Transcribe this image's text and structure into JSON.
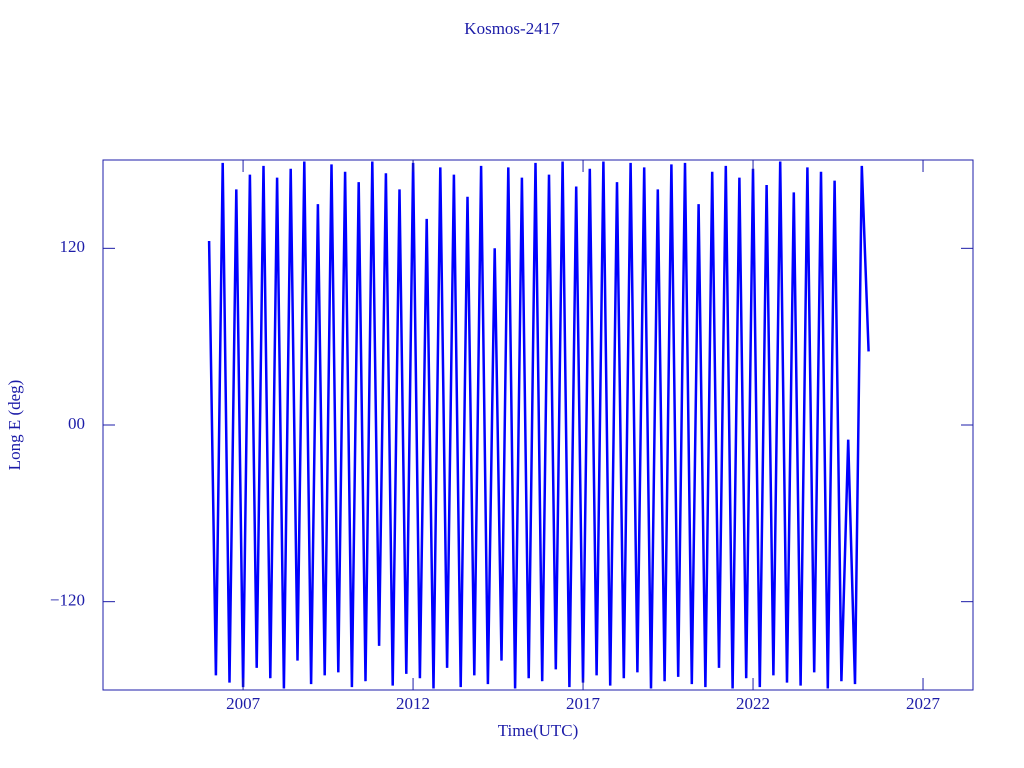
{
  "chart_data": {
    "type": "line",
    "title": "Kosmos-2417",
    "x_label": "Time(UTC)",
    "y_label": "Long E (deg)",
    "xlim": [
      2002.88,
      2028.47
    ],
    "xticks": [
      2007,
      2012,
      2017,
      2022,
      2027
    ],
    "ylim": [
      -180,
      180
    ],
    "yticks": [
      {
        "value": 120,
        "label": "120"
      },
      {
        "value": 0,
        "label": "00"
      },
      {
        "value": -120,
        "label": "−120"
      }
    ],
    "series": [
      {
        "name": "Kosmos-2417",
        "color": "#0000ff",
        "x": [
          2006.0,
          2006.2,
          2006.4,
          2006.6,
          2006.8,
          2007.0,
          2007.2,
          2007.4,
          2007.6,
          2007.8,
          2008.0,
          2008.2,
          2008.4,
          2008.6,
          2008.8,
          2009.0,
          2009.2,
          2009.4,
          2009.6,
          2009.8,
          2010.0,
          2010.2,
          2010.4,
          2010.6,
          2010.8,
          2011.0,
          2011.2,
          2011.4,
          2011.6,
          2011.8,
          2012.0,
          2012.2,
          2012.4,
          2012.6,
          2012.8,
          2013.0,
          2013.2,
          2013.4,
          2013.6,
          2013.8,
          2014.0,
          2014.2,
          2014.4,
          2014.6,
          2014.8,
          2015.0,
          2015.2,
          2015.4,
          2015.6,
          2015.8,
          2016.0,
          2016.2,
          2016.4,
          2016.6,
          2016.8,
          2017.0,
          2017.2,
          2017.4,
          2017.6,
          2017.8,
          2018.0,
          2018.2,
          2018.4,
          2018.6,
          2018.8,
          2019.0,
          2019.2,
          2019.4,
          2019.6,
          2019.8,
          2020.0,
          2020.2,
          2020.4,
          2020.6,
          2020.8,
          2021.0,
          2021.2,
          2021.4,
          2021.6,
          2021.8,
          2022.0,
          2022.2,
          2022.4,
          2022.6,
          2022.8,
          2023.0,
          2023.2,
          2023.4,
          2023.6,
          2023.8,
          2024.0,
          2024.2,
          2024.4,
          2024.6,
          2024.8,
          2025.0,
          2025.2,
          2025.4
        ],
        "values": [
          125,
          -170,
          178,
          -175,
          160,
          -178,
          170,
          -165,
          176,
          -172,
          168,
          -179,
          174,
          -160,
          179,
          -176,
          150,
          -170,
          177,
          -168,
          172,
          -178,
          165,
          -174,
          179,
          -150,
          171,
          -177,
          160,
          -169,
          178,
          -172,
          140,
          -179,
          175,
          -165,
          170,
          -178,
          155,
          -170,
          176,
          -176,
          120,
          -160,
          175,
          -179,
          168,
          -172,
          178,
          -174,
          170,
          -166,
          179,
          -178,
          162,
          -175,
          174,
          -170,
          179,
          -177,
          165,
          -172,
          178,
          -168,
          175,
          -179,
          160,
          -174,
          177,
          -171,
          178,
          -176,
          150,
          -178,
          172,
          -165,
          176,
          -179,
          168,
          -172,
          174,
          -178,
          163,
          -170,
          179,
          -175,
          158,
          -177,
          175,
          -168,
          172,
          -179,
          166,
          -174,
          -10,
          -176,
          176,
          50
        ]
      }
    ]
  }
}
